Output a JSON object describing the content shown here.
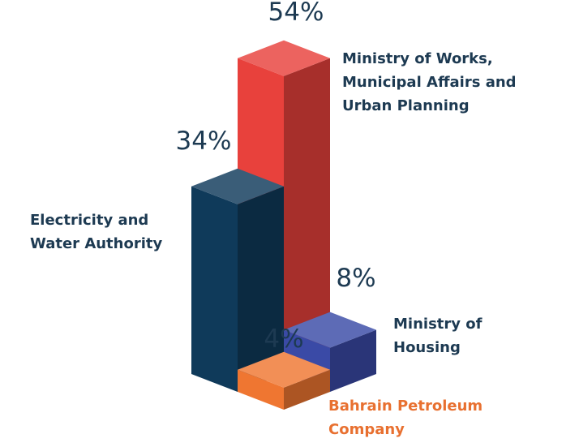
{
  "chart_data": {
    "type": "bar3d",
    "categories": [
      "Ministry of Works, Municipal Affairs and Urban Planning",
      "Electricity and Water Authority",
      "Ministry of Housing",
      "Bahrain Petroleum Company"
    ],
    "values": [
      54,
      34,
      8,
      4
    ],
    "value_labels": [
      "54%",
      "34%",
      "8%",
      "4%"
    ],
    "colors": [
      "#e8413c",
      "#0f3a5a",
      "#3a4aa6",
      "#ef7631"
    ],
    "label_colors": [
      "#1d3a52",
      "#1d3a52",
      "#1d3a52",
      "#e87030"
    ]
  }
}
